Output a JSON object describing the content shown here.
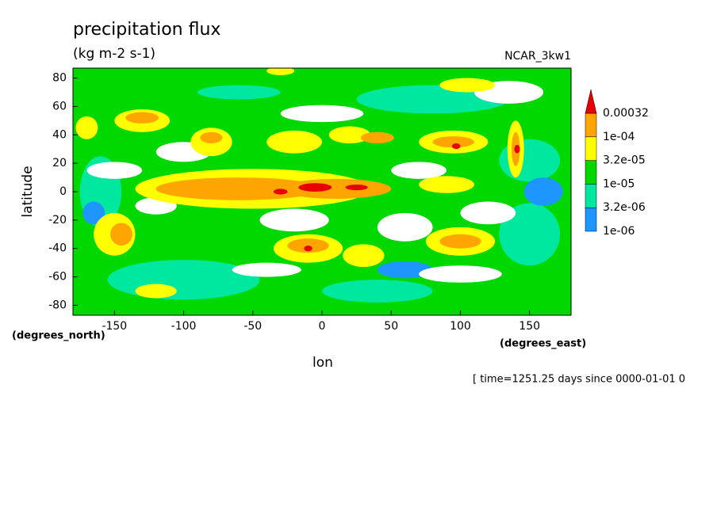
{
  "chart_data": {
    "type": "contour",
    "title": "precipitation flux",
    "subtitle": "(kg m-2 s-1)",
    "dataset": "NCAR_3kw1",
    "x_label": "lon",
    "y_label": "latitude",
    "x_units": "(degrees_east)",
    "y_units": "(degrees_north)",
    "footer": "[ time=1251.25 days since 0000-01-01 0",
    "xlim": [
      -180,
      180
    ],
    "ylim": [
      -87,
      87
    ],
    "xticks": [
      -150,
      -100,
      -50,
      0,
      50,
      100,
      150
    ],
    "yticks": [
      -80,
      -60,
      -40,
      -20,
      0,
      20,
      40,
      60,
      80
    ],
    "levels": [
      {
        "value": 1e-06,
        "label": "1e-06"
      },
      {
        "value": 3.2e-06,
        "label": "3.2e-06"
      },
      {
        "value": 1e-05,
        "label": "1e-05"
      },
      {
        "value": 3.2e-05,
        "label": "3.2e-05"
      },
      {
        "value": 0.0001,
        "label": "1e-04"
      },
      {
        "value": 0.00032,
        "label": "0.00032"
      }
    ],
    "colors": [
      "#1e96ff",
      "#00e8a0",
      "#00d800",
      "#ffff00",
      "#ffa500",
      "#e80000"
    ]
  }
}
